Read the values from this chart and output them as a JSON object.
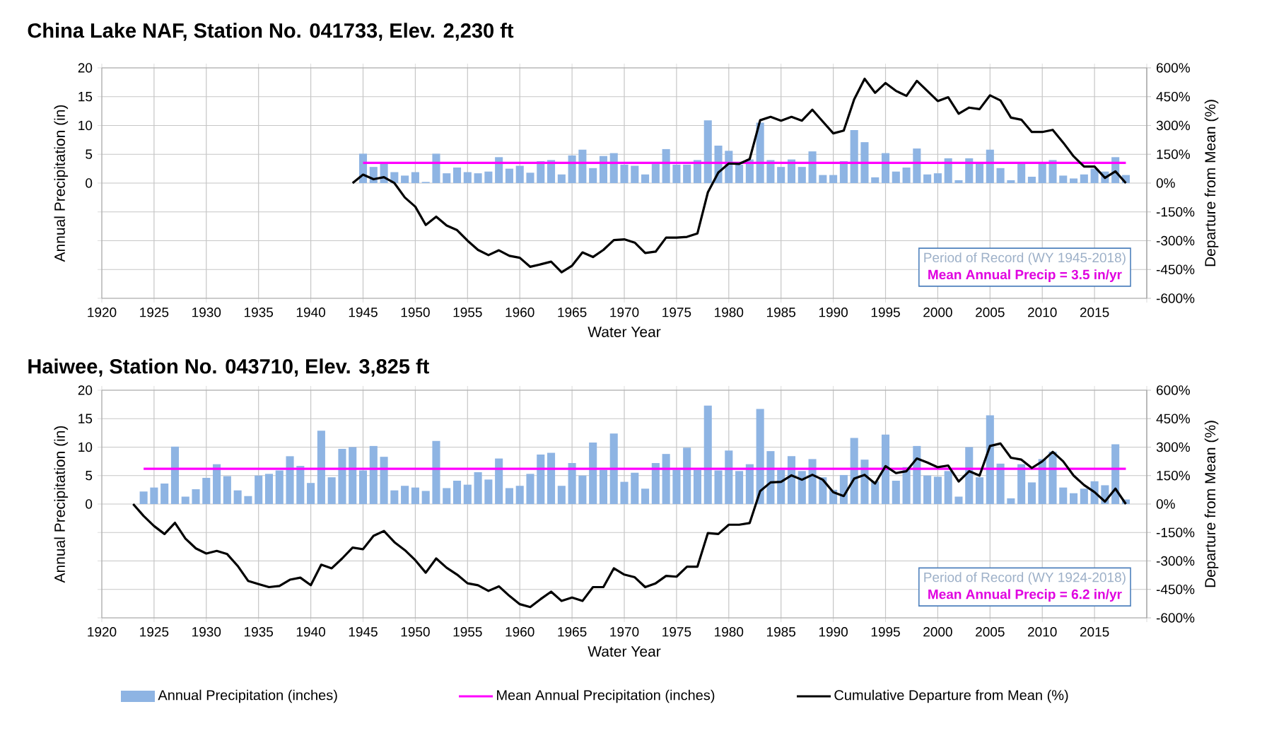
{
  "chart_data": [
    {
      "type": "bar",
      "title": "China Lake NAF, Station No. 041733, Elev. 2,230 ft",
      "xlabel": "Water Year",
      "ylabel": "Annual Precipitation (in)",
      "y2label": "Departure from Mean (%)",
      "xlim": [
        1920,
        2020
      ],
      "xticks": [
        1920,
        1925,
        1930,
        1935,
        1940,
        1945,
        1950,
        1955,
        1960,
        1965,
        1970,
        1975,
        1980,
        1985,
        1990,
        1995,
        2000,
        2005,
        2010,
        2015,
        {
          "value": 2020,
          "label": null
        }
      ],
      "ylim": [
        -20,
        20
      ],
      "yticks": [
        {
          "value": -20,
          "label": null
        },
        {
          "value": -15,
          "label": null
        },
        {
          "value": -10,
          "label": null
        },
        {
          "value": -5,
          "label": null
        },
        0,
        5,
        10,
        15,
        20
      ],
      "y2lim": [
        -600,
        600
      ],
      "y2ticks": [
        {
          "value": -600,
          "label": "-600%"
        },
        {
          "value": -450,
          "label": "-450%"
        },
        {
          "value": -300,
          "label": "-300%"
        },
        {
          "value": -150,
          "label": "-150%"
        },
        {
          "value": 0,
          "label": "0%"
        },
        {
          "value": 150,
          "label": "150%"
        },
        {
          "value": 300,
          "label": "300%"
        },
        {
          "value": 450,
          "label": "450%"
        },
        {
          "value": 600,
          "label": "600%"
        }
      ],
      "grid": true,
      "legend": false,
      "annotations": [
        "Period of Record (WY 1945-2018)",
        "Mean Annual Precip = 3.5 in/yr"
      ],
      "series": [
        {
          "color": "#8eb4e3",
          "x": [
            1945,
            1946,
            1947,
            1948,
            1949,
            1950,
            1951,
            1952,
            1953,
            1954,
            1955,
            1956,
            1957,
            1958,
            1959,
            1960,
            1961,
            1962,
            1963,
            1964,
            1965,
            1966,
            1967,
            1968,
            1969,
            1970,
            1971,
            1972,
            1973,
            1974,
            1975,
            1976,
            1977,
            1978,
            1979,
            1980,
            1981,
            1982,
            1983,
            1984,
            1985,
            1986,
            1987,
            1988,
            1989,
            1990,
            1991,
            1992,
            1993,
            1994,
            1995,
            1996,
            1997,
            1998,
            1999,
            2000,
            2001,
            2002,
            2003,
            2004,
            2005,
            2006,
            2007,
            2008,
            2009,
            2010,
            2011,
            2012,
            2013,
            2014,
            2015,
            2016,
            2017,
            2018
          ],
          "values": [
            5.1,
            2.8,
            3.4,
            1.9,
            1.3,
            1.9,
            0.2,
            5.1,
            1.7,
            2.7,
            1.9,
            1.7,
            2.0,
            4.5,
            2.5,
            3.0,
            1.8,
            3.8,
            4.0,
            1.5,
            4.8,
            5.8,
            2.6,
            4.7,
            5.2,
            3.2,
            3.0,
            1.5,
            3.3,
            5.9,
            3.2,
            3.2,
            4.0,
            10.9,
            6.5,
            5.6,
            3.2,
            4.1,
            10.5,
            4.0,
            2.8,
            4.1,
            2.8,
            5.5,
            1.4,
            1.4,
            3.8,
            9.2,
            7.1,
            1.0,
            5.2,
            2.0,
            2.7,
            6.0,
            1.5,
            1.7,
            4.3,
            0.5,
            4.3,
            3.4,
            5.8,
            2.6,
            0.5,
            3.4,
            1.1,
            3.4,
            4.0,
            1.3,
            0.8,
            1.5,
            2.5,
            2.0,
            4.5,
            1.4
          ]
        },
        {
          "type": "line",
          "color": "#ff00ff",
          "x": [
            1945,
            2018
          ],
          "values": [
            3.5,
            3.5
          ]
        },
        {
          "type": "line",
          "axis": "y2",
          "color": "#000000",
          "x": [
            1944,
            1945,
            1946,
            1947,
            1948,
            1949,
            1950,
            1951,
            1952,
            1953,
            1954,
            1955,
            1956,
            1957,
            1958,
            1959,
            1960,
            1961,
            1962,
            1963,
            1964,
            1965,
            1966,
            1967,
            1968,
            1969,
            1970,
            1971,
            1972,
            1973,
            1974,
            1975,
            1976,
            1977,
            1978,
            1979,
            1980,
            1981,
            1982,
            1983,
            1984,
            1985,
            1986,
            1987,
            1988,
            1989,
            1990,
            1991,
            1992,
            1993,
            1994,
            1995,
            1996,
            1997,
            1998,
            1999,
            2000,
            2001,
            2002,
            2003,
            2004,
            2005,
            2006,
            2007,
            2008,
            2009,
            2010,
            2011,
            2012,
            2013,
            2014,
            2015,
            2016,
            2017,
            2018
          ],
          "values": [
            0,
            44,
            20,
            31,
            0,
            -75,
            -123,
            -218,
            -175,
            -221,
            -245,
            -300,
            -348,
            -375,
            -350,
            -379,
            -389,
            -436,
            -423,
            -409,
            -464,
            -430,
            -361,
            -385,
            -348,
            -297,
            -293,
            -310,
            -364,
            -357,
            -284,
            -284,
            -280,
            -262,
            -48,
            55,
            102,
            100,
            125,
            327,
            345,
            325,
            345,
            325,
            382,
            320,
            259,
            273,
            436,
            543,
            470,
            521,
            480,
            454,
            532,
            480,
            427,
            447,
            361,
            393,
            385,
            457,
            430,
            341,
            330,
            266,
            266,
            277,
            211,
            139,
            86,
            86,
            27,
            61,
            0
          ]
        }
      ]
    },
    {
      "type": "bar",
      "title": "Haiwee, Station No. 043710, Elev. 3,825 ft",
      "xlabel": "Water Year",
      "ylabel": "Annual Precipitation (in)",
      "y2label": "Departure from Mean (%)",
      "xlim": [
        1920,
        2020
      ],
      "xticks": [
        1920,
        1925,
        1930,
        1935,
        1940,
        1945,
        1950,
        1955,
        1960,
        1965,
        1970,
        1975,
        1980,
        1985,
        1990,
        1995,
        2000,
        2005,
        2010,
        2015,
        {
          "value": 2020,
          "label": null
        }
      ],
      "ylim": [
        -20,
        20
      ],
      "yticks": [
        {
          "value": -20,
          "label": null
        },
        {
          "value": -15,
          "label": null
        },
        {
          "value": -10,
          "label": null
        },
        {
          "value": -5,
          "label": null
        },
        0,
        5,
        10,
        15,
        20
      ],
      "y2lim": [
        -600,
        600
      ],
      "y2ticks": [
        {
          "value": -600,
          "label": "-600%"
        },
        {
          "value": -450,
          "label": "-450%"
        },
        {
          "value": -300,
          "label": "-300%"
        },
        {
          "value": -150,
          "label": "-150%"
        },
        {
          "value": 0,
          "label": "0%"
        },
        {
          "value": 150,
          "label": "150%"
        },
        {
          "value": 300,
          "label": "300%"
        },
        {
          "value": 450,
          "label": "450%"
        },
        {
          "value": 600,
          "label": "600%"
        }
      ],
      "grid": true,
      "legend": "bottom",
      "annotations": [
        "Period of Record (WY 1924-2018)",
        "Mean Annual Precip = 6.2 in/yr"
      ],
      "series": [
        {
          "name": "Annual Precipitation (inches)",
          "color": "#8eb4e3",
          "x": [
            1924,
            1925,
            1926,
            1927,
            1928,
            1929,
            1930,
            1931,
            1932,
            1933,
            1934,
            1935,
            1936,
            1937,
            1938,
            1939,
            1940,
            1941,
            1942,
            1943,
            1944,
            1945,
            1946,
            1947,
            1948,
            1949,
            1950,
            1951,
            1952,
            1953,
            1954,
            1955,
            1956,
            1957,
            1958,
            1959,
            1960,
            1961,
            1962,
            1963,
            1964,
            1965,
            1966,
            1967,
            1968,
            1969,
            1970,
            1971,
            1972,
            1973,
            1974,
            1975,
            1976,
            1977,
            1978,
            1979,
            1980,
            1981,
            1982,
            1983,
            1984,
            1985,
            1986,
            1987,
            1988,
            1989,
            1990,
            1991,
            1992,
            1993,
            1994,
            1995,
            1996,
            1997,
            1998,
            1999,
            2000,
            2001,
            2002,
            2003,
            2004,
            2005,
            2006,
            2007,
            2008,
            2009,
            2010,
            2011,
            2012,
            2013,
            2014,
            2015,
            2016,
            2017,
            2018
          ],
          "values": [
            2.2,
            2.9,
            3.6,
            10.1,
            1.3,
            2.6,
            4.6,
            7.0,
            4.9,
            2.4,
            1.4,
            5.0,
            5.3,
            5.9,
            8.4,
            6.7,
            3.7,
            12.9,
            4.7,
            9.7,
            10.0,
            5.9,
            10.2,
            8.3,
            2.4,
            3.2,
            2.9,
            2.3,
            11.1,
            2.8,
            4.1,
            3.4,
            5.6,
            4.3,
            8.0,
            2.8,
            3.2,
            5.3,
            8.7,
            9.0,
            3.2,
            7.2,
            5.0,
            10.8,
            6.0,
            12.4,
            3.9,
            5.5,
            2.7,
            7.2,
            8.8,
            6.0,
            9.9,
            6.0,
            17.3,
            5.9,
            9.4,
            5.8,
            7.0,
            16.7,
            9.3,
            6.0,
            8.4,
            5.8,
            7.9,
            4.7,
            2.5,
            5.1,
            11.6,
            7.8,
            4.0,
            12.2,
            4.1,
            6.5,
            10.2,
            5.0,
            4.8,
            5.8,
            1.3,
            10.0,
            4.7,
            15.6,
            7.1,
            1.0,
            7.0,
            3.8,
            7.9,
            9.2,
            2.9,
            1.9,
            2.7,
            4.0,
            3.3,
            10.5,
            0.8
          ]
        },
        {
          "type": "line",
          "name": "Mean Annual Precipitation (inches)",
          "color": "#ff00ff",
          "x": [
            1924,
            2018
          ],
          "values": [
            6.2,
            6.2
          ]
        },
        {
          "type": "line",
          "axis": "y2",
          "name": "Cumulative Departure from Mean (%)",
          "color": "#000000",
          "x": [
            1923,
            1924,
            1925,
            1926,
            1927,
            1928,
            1929,
            1930,
            1931,
            1932,
            1933,
            1934,
            1935,
            1936,
            1937,
            1938,
            1939,
            1940,
            1941,
            1942,
            1943,
            1944,
            1945,
            1946,
            1947,
            1948,
            1949,
            1950,
            1951,
            1952,
            1953,
            1954,
            1955,
            1956,
            1957,
            1958,
            1959,
            1960,
            1961,
            1962,
            1963,
            1964,
            1965,
            1966,
            1967,
            1968,
            1969,
            1970,
            1971,
            1972,
            1973,
            1974,
            1975,
            1976,
            1977,
            1978,
            1979,
            1980,
            1981,
            1982,
            1983,
            1984,
            1985,
            1986,
            1987,
            1988,
            1989,
            1990,
            1991,
            1992,
            1993,
            1994,
            1995,
            1996,
            1997,
            1998,
            1999,
            2000,
            2001,
            2002,
            2003,
            2004,
            2005,
            2006,
            2007,
            2008,
            2009,
            2010,
            2011,
            2012,
            2013,
            2014,
            2015,
            2016,
            2017,
            2018
          ],
          "values": [
            0,
            -63,
            -116,
            -158,
            -99,
            -182,
            -234,
            -261,
            -247,
            -264,
            -326,
            -405,
            -422,
            -438,
            -432,
            -399,
            -388,
            -428,
            -320,
            -339,
            -287,
            -230,
            -238,
            -168,
            -142,
            -201,
            -243,
            -296,
            -362,
            -287,
            -336,
            -372,
            -418,
            -428,
            -458,
            -434,
            -484,
            -528,
            -543,
            -501,
            -462,
            -511,
            -493,
            -511,
            -438,
            -438,
            -339,
            -372,
            -386,
            -438,
            -418,
            -379,
            -383,
            -330,
            -330,
            -153,
            -158,
            -109,
            -109,
            -100,
            68,
            114,
            117,
            151,
            128,
            154,
            128,
            62,
            42,
            134,
            154,
            108,
            200,
            163,
            173,
            240,
            219,
            194,
            203,
            119,
            173,
            150,
            306,
            319,
            244,
            234,
            190,
            225,
            275,
            225,
            150,
            100,
            63,
            13,
            81,
            0
          ]
        }
      ]
    }
  ]
}
